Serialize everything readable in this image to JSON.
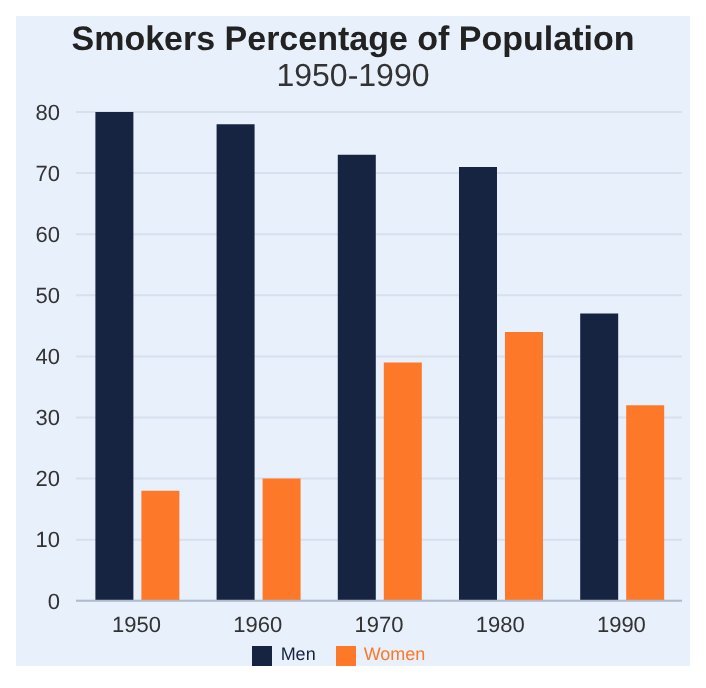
{
  "chart_data": {
    "type": "bar",
    "title": "Smokers Percentage of Population",
    "subtitle": "1950-1990",
    "categories": [
      "1950",
      "1960",
      "1970",
      "1980",
      "1990"
    ],
    "series": [
      {
        "name": "Men",
        "color": "#172441",
        "values": [
          80,
          78,
          73,
          71,
          47
        ]
      },
      {
        "name": "Women",
        "color": "#fd7828",
        "values": [
          18,
          20,
          39,
          44,
          32
        ]
      }
    ],
    "ylim": [
      0,
      80
    ],
    "yticks": [
      0,
      10,
      20,
      30,
      40,
      50,
      60,
      70,
      80
    ],
    "grid": "y",
    "legend": "bottom"
  }
}
